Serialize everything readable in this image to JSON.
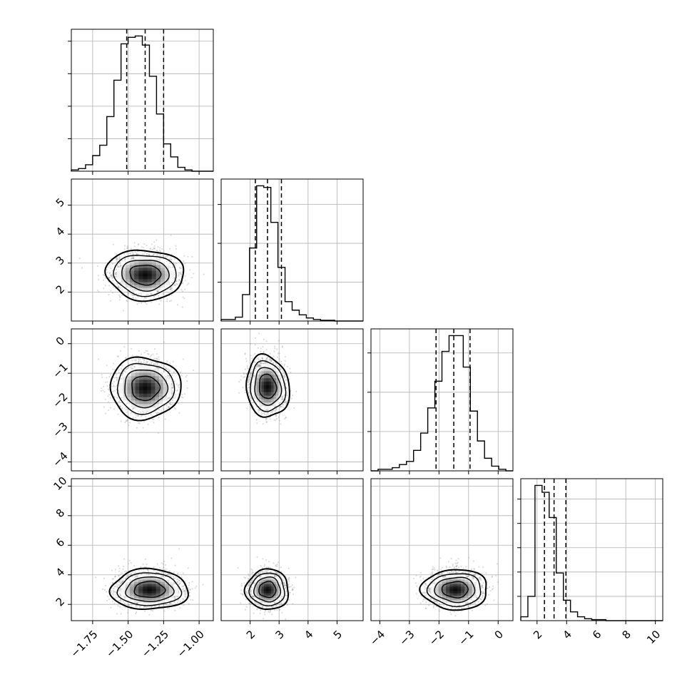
{
  "chart_data": {
    "type": "corner",
    "n_params": 4,
    "params": [
      {
        "range": [
          -1.9,
          -0.9
        ],
        "ticks": [
          -1.75,
          -1.5,
          -1.25,
          -1.0
        ],
        "tick_labels": [
          "−1.75",
          "−1.50",
          "−1.25",
          "−1.00"
        ],
        "quantiles": [
          -1.51,
          -1.38,
          -1.25
        ],
        "histogram": {
          "edges_start": -1.9,
          "bin_width": 0.05,
          "counts": [
            1,
            2,
            5,
            12,
            20,
            42,
            70,
            98,
            103,
            104,
            97,
            73,
            44,
            21,
            11,
            3,
            1,
            0,
            0,
            0
          ]
        }
      },
      {
        "range": [
          1.0,
          5.9
        ],
        "ticks": [
          2,
          3,
          4,
          5
        ],
        "tick_labels": [
          "2",
          "3",
          "4",
          "5"
        ],
        "quantiles": [
          2.18,
          2.6,
          3.08
        ],
        "histogram": {
          "edges_start": 1.0,
          "bin_width": 0.245,
          "counts": [
            2,
            2,
            5,
            34,
            94,
            174,
            172,
            127,
            69,
            25,
            14,
            8,
            4,
            2,
            1,
            1,
            0,
            0,
            0,
            0
          ]
        }
      },
      {
        "range": [
          -4.3,
          0.5
        ],
        "ticks": [
          -4,
          -3,
          -2,
          -1,
          0
        ],
        "tick_labels": [
          "−4",
          "−3",
          "−2",
          "−1",
          "0"
        ],
        "quantiles": [
          -2.1,
          -1.5,
          -0.95
        ],
        "histogram": {
          "edges_start": -4.3,
          "bin_width": 0.24,
          "counts": [
            0,
            1,
            1,
            2,
            4,
            6,
            13,
            24,
            40,
            57,
            76,
            86,
            86,
            66,
            38,
            19,
            8,
            3,
            1,
            0
          ]
        }
      },
      {
        "range": [
          0.9,
          10.5
        ],
        "ticks": [
          2,
          4,
          6,
          8,
          10
        ],
        "tick_labels": [
          "2",
          "4",
          "6",
          "8",
          "10"
        ],
        "quantiles": [
          2.5,
          3.15,
          3.95
        ],
        "histogram": {
          "edges_start": 0.9,
          "bin_width": 0.48,
          "counts": [
            4,
            25,
            139,
            132,
            106,
            49,
            21,
            9,
            4,
            2,
            1,
            1,
            0,
            0,
            0,
            0,
            0,
            0,
            0,
            0
          ]
        }
      }
    ],
    "pairs": [
      {
        "x": 0,
        "y": 1,
        "center": [
          -1.38,
          2.6
        ],
        "spread": [
          0.11,
          0.35
        ],
        "rho": -0.05
      },
      {
        "x": 0,
        "y": 2,
        "center": [
          -1.38,
          -1.5
        ],
        "spread": [
          0.1,
          0.42
        ],
        "rho": 0.0
      },
      {
        "x": 1,
        "y": 2,
        "center": [
          2.6,
          -1.45
        ],
        "spread": [
          0.3,
          0.42
        ],
        "rho": -0.1
      },
      {
        "x": 0,
        "y": 3,
        "center": [
          -1.35,
          3.0
        ],
        "spread": [
          0.11,
          0.55
        ],
        "rho": 0.0
      },
      {
        "x": 1,
        "y": 3,
        "center": [
          2.6,
          3.0
        ],
        "spread": [
          0.3,
          0.55
        ],
        "rho": 0.0
      },
      {
        "x": 2,
        "y": 3,
        "center": [
          -1.45,
          3.0
        ],
        "spread": [
          0.45,
          0.55
        ],
        "rho": 0.0
      }
    ],
    "contour_levels_sigma": [
      0.5,
      1.0,
      1.5,
      2.0
    ],
    "grid": true,
    "colors": {
      "hist": "#000000",
      "contour": "#000000",
      "points": "#9a9a9a",
      "grid": "#b0b0b0"
    }
  }
}
